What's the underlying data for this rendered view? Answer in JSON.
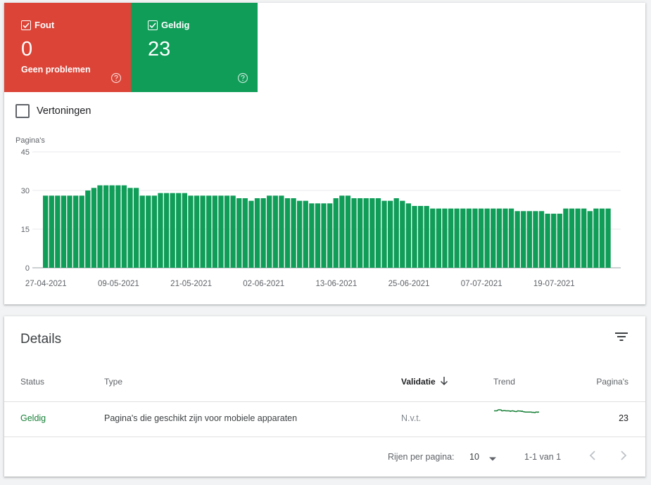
{
  "tiles": {
    "error": {
      "label": "Fout",
      "count": "0",
      "subtitle": "Geen problemen",
      "color": "#db4437"
    },
    "valid": {
      "label": "Geldig",
      "count": "23",
      "color": "#0f9d58"
    }
  },
  "impressions_toggle": {
    "label": "Vertoningen",
    "checked": false
  },
  "chart_data": {
    "type": "bar",
    "ylabel": "Pagina's",
    "ylim": [
      0,
      45
    ],
    "yticks": [
      0,
      15,
      30,
      45
    ],
    "xtick_labels": [
      "27-04-2021",
      "09-05-2021",
      "21-05-2021",
      "02-06-2021",
      "13-06-2021",
      "25-06-2021",
      "07-07-2021",
      "19-07-2021"
    ],
    "grid": true,
    "color": "#0f9d58",
    "series": [
      {
        "values": [
          28,
          28,
          28,
          28,
          28,
          28,
          28,
          30,
          31,
          32,
          32,
          32,
          32,
          32,
          31,
          31,
          28,
          28,
          28,
          29,
          29,
          29,
          29,
          29,
          28,
          28,
          28,
          28,
          28,
          28,
          28,
          28,
          27,
          27,
          26,
          27,
          27,
          28,
          28,
          28,
          27,
          27,
          26,
          26,
          25,
          25,
          25,
          25,
          27,
          28,
          28,
          27,
          27,
          27,
          27,
          27,
          26,
          26,
          27,
          26,
          25,
          24,
          24,
          24,
          23,
          23,
          23,
          23,
          23,
          23,
          23,
          23,
          23,
          23,
          23,
          23,
          23,
          23,
          22,
          22,
          22,
          22,
          22,
          21,
          21,
          21,
          23,
          23,
          23,
          23,
          22,
          23,
          23,
          23
        ]
      }
    ]
  },
  "details": {
    "title": "Details",
    "columns": {
      "status": "Status",
      "type": "Type",
      "validation": "Validatie",
      "trend": "Trend",
      "pages": "Pagina's"
    },
    "rows": [
      {
        "status": "Geldig",
        "type": "Pagina's die geschikt zijn voor mobiele apparaten",
        "validation": "N.v.t.",
        "pages": "23"
      }
    ],
    "footer": {
      "rows_per_page_label": "Rijen per pagina:",
      "rows_per_page": "10",
      "range": "1-1 van 1"
    }
  }
}
